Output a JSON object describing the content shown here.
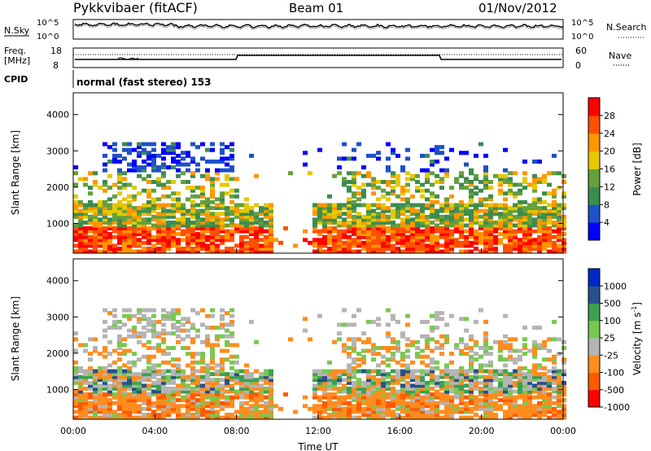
{
  "header": {
    "station": "Pykkvibaer (fitACF)",
    "beam": "Beam 01",
    "date": "01/Nov/2012"
  },
  "strips": {
    "nsky_label": "N.Sky",
    "nsearch_label": "N.Search",
    "noise_tick_high": "10^5",
    "noise_tick_low": "10^0",
    "freq_label": "Freq.",
    "freq_unit": "[MHz]",
    "freq_tick_high": "18",
    "freq_tick_low": "8",
    "nave_label": "Nave",
    "nave_tick_high": "60",
    "nave_tick_low": "0",
    "cpid_label": "CPID",
    "cpid_text": "normal (fast stereo) 153"
  },
  "colors": {
    "power": [
      "#0000ff",
      "#1e50c8",
      "#3c8c50",
      "#64a03c",
      "#e6c800",
      "#ff9600",
      "#ff5000",
      "#ff0000"
    ],
    "velocity": [
      "#ff0000",
      "#ff5a00",
      "#ff8c1e",
      "#b4b4b4",
      "#78c850",
      "#3ca050",
      "#28508c",
      "#0028c8"
    ]
  },
  "chart_data": [
    {
      "type": "heatmap",
      "quantity": "Power",
      "ylabel": "Slant Range [km]",
      "ylim": [
        180,
        4600
      ],
      "yticks": [
        1000,
        2000,
        3000,
        4000
      ],
      "colorbar_label": "Power [dB]",
      "colorbar_ticks": [
        4,
        8,
        12,
        16,
        20,
        24,
        28
      ],
      "colorbar_range": [
        0,
        32
      ]
    },
    {
      "type": "heatmap",
      "quantity": "Velocity",
      "ylabel": "Slant Range [km]",
      "ylim": [
        180,
        4600
      ],
      "yticks": [
        1000,
        2000,
        3000,
        4000
      ],
      "xlabel": "Time UT",
      "xticks": [
        "00:00",
        "04:00",
        "08:00",
        "12:00",
        "16:00",
        "20:00",
        "00:00"
      ],
      "colorbar_label": "Velocity [m s",
      "colorbar_label_sup": "-1",
      "colorbar_label_end": "]",
      "colorbar_ticks": [
        "1000",
        "500",
        "100",
        "25",
        "-25",
        "-100",
        "-500",
        "-1000"
      ]
    }
  ]
}
